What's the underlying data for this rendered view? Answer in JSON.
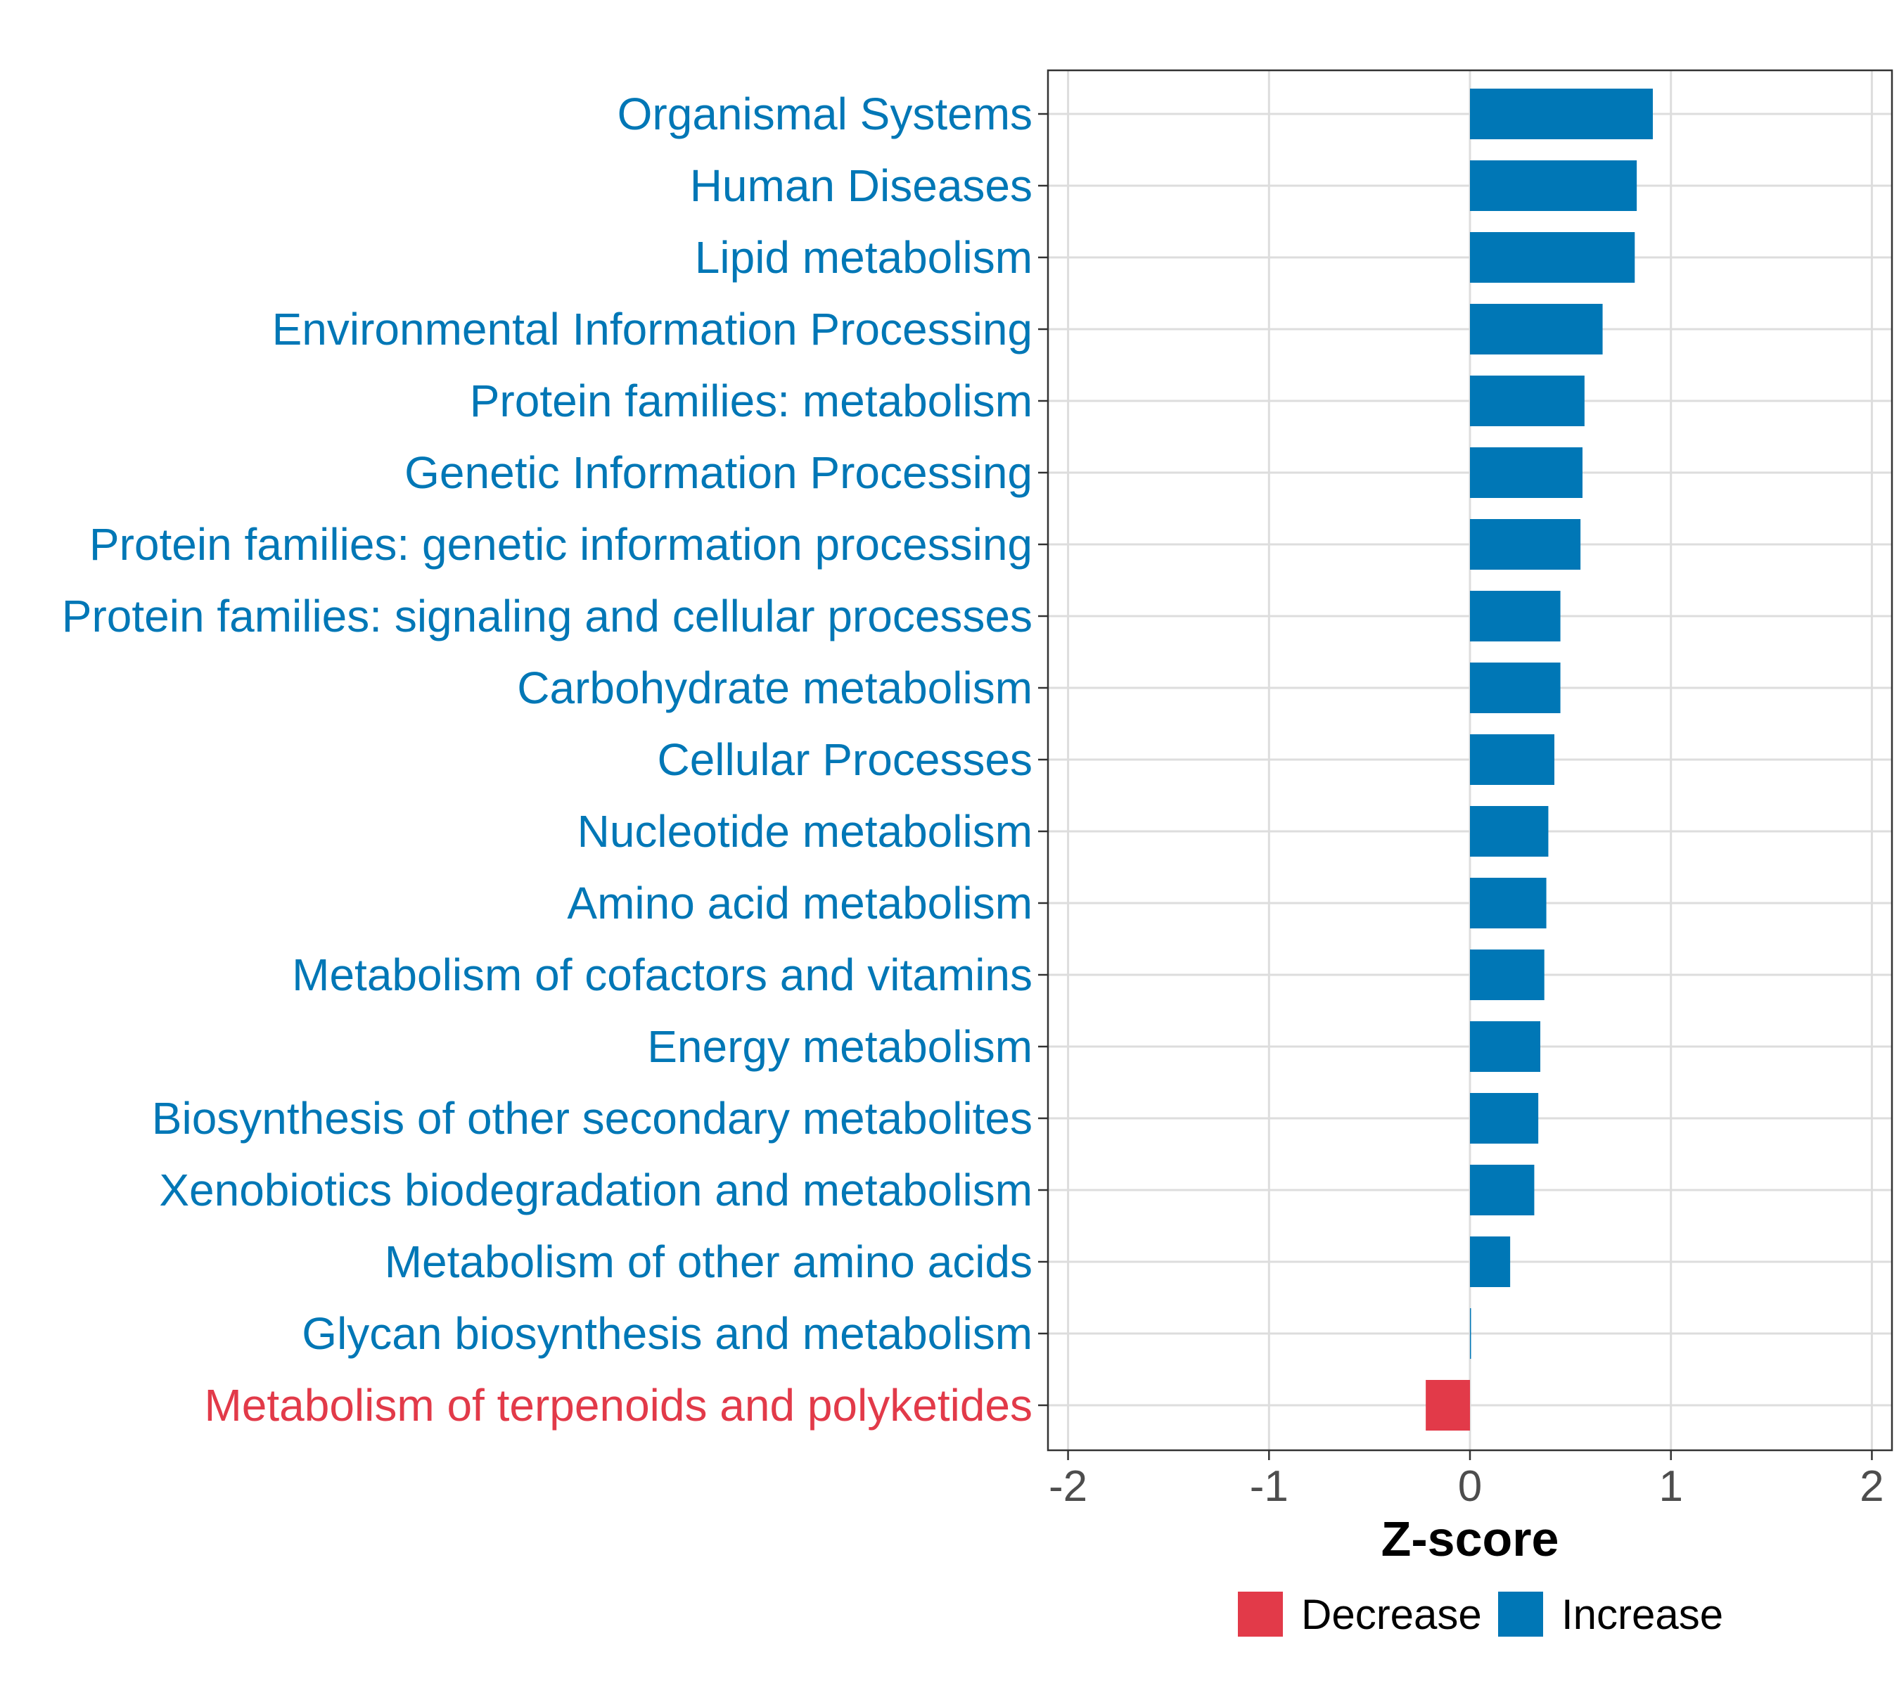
{
  "chart_data": {
    "type": "bar",
    "orientation": "horizontal",
    "title": "",
    "xlabel": "Z-score",
    "ylabel": "",
    "xlim": [
      -2.1,
      2.1
    ],
    "x_ticks": [
      -2,
      -1,
      0,
      1,
      2
    ],
    "x_tick_labels": [
      "-2",
      "-1",
      "0",
      "1",
      "2"
    ],
    "grid": true,
    "legend_position": "bottom",
    "categories": [
      "Organismal Systems",
      "Human Diseases",
      "Lipid metabolism",
      "Environmental Information Processing",
      "Protein families: metabolism",
      "Genetic Information Processing",
      "Protein families: genetic information processing",
      "Protein families: signaling and cellular processes",
      "Carbohydrate metabolism",
      "Cellular Processes",
      "Nucleotide metabolism",
      "Amino acid metabolism",
      "Metabolism of cofactors and vitamins",
      "Energy metabolism",
      "Biosynthesis of other secondary metabolites",
      "Xenobiotics biodegradation and metabolism",
      "Metabolism of other amino acids",
      "Glycan biosynthesis and metabolism",
      "Metabolism of terpenoids and polyketides"
    ],
    "values": [
      0.91,
      0.83,
      0.82,
      0.66,
      0.57,
      0.56,
      0.55,
      0.45,
      0.45,
      0.42,
      0.39,
      0.38,
      0.37,
      0.35,
      0.34,
      0.32,
      0.2,
      0.005,
      -0.22
    ],
    "groups": [
      "Increase",
      "Increase",
      "Increase",
      "Increase",
      "Increase",
      "Increase",
      "Increase",
      "Increase",
      "Increase",
      "Increase",
      "Increase",
      "Increase",
      "Increase",
      "Increase",
      "Increase",
      "Increase",
      "Increase",
      "Increase",
      "Decrease"
    ],
    "legend": [
      {
        "label": "Decrease",
        "color": "#E23A49"
      },
      {
        "label": "Increase",
        "color": "#0077B6"
      }
    ]
  }
}
